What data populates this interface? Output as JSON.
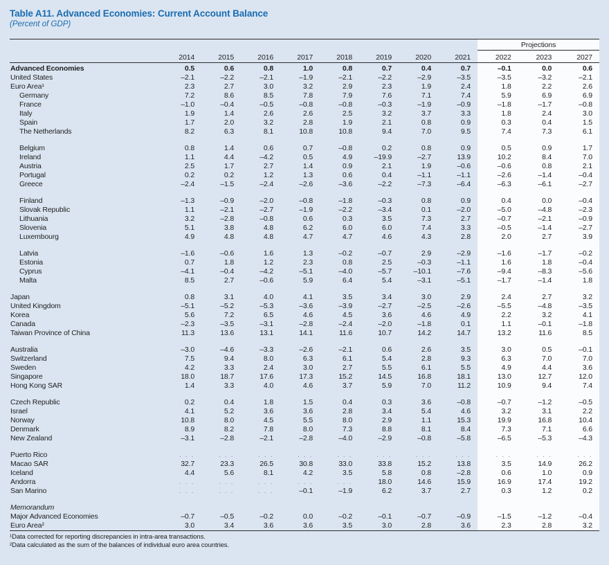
{
  "title": "Table A11. Advanced Economies: Current Account Balance",
  "subtitle": "(Percent of GDP)",
  "projections_label": "Projections",
  "columns": [
    "2014",
    "2015",
    "2016",
    "2017",
    "2018",
    "2019",
    "2020",
    "2021",
    "2022",
    "2023",
    "2027"
  ],
  "projection_start_index": 8,
  "dots_placeholder": ". . .",
  "colors": {
    "page_bg": "#dbe5f1",
    "panel_bg": "#fbfcfe",
    "accent_blue": "#1a6cb0",
    "text": "#1e1e1e",
    "rule": "#2a2a2a",
    "dots": "#8a97a5"
  },
  "rows": [
    {
      "label": "Advanced Economies",
      "indent": 0,
      "bold": true,
      "values": [
        "0.5",
        "0.6",
        "0.8",
        "1.0",
        "0.8",
        "0.7",
        "0.4",
        "0.7",
        "–0.1",
        "0.0",
        "0.6"
      ]
    },
    {
      "label": "United States",
      "indent": 0,
      "values": [
        "–2.1",
        "–2.2",
        "–2.1",
        "–1.9",
        "–2.1",
        "–2.2",
        "–2.9",
        "–3.5",
        "–3.5",
        "–3.2",
        "–2.1"
      ]
    },
    {
      "label": "Euro Area¹",
      "indent": 0,
      "values": [
        "2.3",
        "2.7",
        "3.0",
        "3.2",
        "2.9",
        "2.3",
        "1.9",
        "2.4",
        "1.8",
        "2.2",
        "2.6"
      ]
    },
    {
      "label": "Germany",
      "indent": 1,
      "values": [
        "7.2",
        "8.6",
        "8.5",
        "7.8",
        "7.9",
        "7.6",
        "7.1",
        "7.4",
        "5.9",
        "6.9",
        "6.9"
      ]
    },
    {
      "label": "France",
      "indent": 1,
      "values": [
        "–1.0",
        "–0.4",
        "–0.5",
        "–0.8",
        "–0.8",
        "–0.3",
        "–1.9",
        "–0.9",
        "–1.8",
        "–1.7",
        "–0.8"
      ]
    },
    {
      "label": "Italy",
      "indent": 1,
      "values": [
        "1.9",
        "1.4",
        "2.6",
        "2.6",
        "2.5",
        "3.2",
        "3.7",
        "3.3",
        "1.8",
        "2.4",
        "3.0"
      ]
    },
    {
      "label": "Spain",
      "indent": 1,
      "values": [
        "1.7",
        "2.0",
        "3.2",
        "2.8",
        "1.9",
        "2.1",
        "0.8",
        "0.9",
        "0.3",
        "0.4",
        "1.5"
      ]
    },
    {
      "label": "The Netherlands",
      "indent": 1,
      "values": [
        "8.2",
        "6.3",
        "8.1",
        "10.8",
        "10.8",
        "9.4",
        "7.0",
        "9.5",
        "7.4",
        "7.3",
        "6.1"
      ]
    },
    {
      "label": "Belgium",
      "indent": 1,
      "gap_before": true,
      "values": [
        "0.8",
        "1.4",
        "0.6",
        "0.7",
        "–0.8",
        "0.2",
        "0.8",
        "0.9",
        "0.5",
        "0.9",
        "1.7"
      ]
    },
    {
      "label": "Ireland",
      "indent": 1,
      "values": [
        "1.1",
        "4.4",
        "–4.2",
        "0.5",
        "4.9",
        "–19.9",
        "–2.7",
        "13.9",
        "10.2",
        "8.4",
        "7.0"
      ]
    },
    {
      "label": "Austria",
      "indent": 1,
      "values": [
        "2.5",
        "1.7",
        "2.7",
        "1.4",
        "0.9",
        "2.1",
        "1.9",
        "–0.6",
        "–0.6",
        "0.8",
        "2.1"
      ]
    },
    {
      "label": "Portugal",
      "indent": 1,
      "values": [
        "0.2",
        "0.2",
        "1.2",
        "1.3",
        "0.6",
        "0.4",
        "–1.1",
        "–1.1",
        "–2.6",
        "–1.4",
        "–0.4"
      ]
    },
    {
      "label": "Greece",
      "indent": 1,
      "values": [
        "–2.4",
        "–1.5",
        "–2.4",
        "–2.6",
        "–3.6",
        "–2.2",
        "–7.3",
        "–6.4",
        "–6.3",
        "–6.1",
        "–2.7"
      ]
    },
    {
      "label": "Finland",
      "indent": 1,
      "gap_before": true,
      "values": [
        "–1.3",
        "–0.9",
        "–2.0",
        "–0.8",
        "–1.8",
        "–0.3",
        "0.8",
        "0.9",
        "0.4",
        "0.0",
        "–0.4"
      ]
    },
    {
      "label": "Slovak Republic",
      "indent": 1,
      "values": [
        "1.1",
        "–2.1",
        "–2.7",
        "–1.9",
        "–2.2",
        "–3.4",
        "0.1",
        "–2.0",
        "–5.0",
        "–4.8",
        "–2.3"
      ]
    },
    {
      "label": "Lithuania",
      "indent": 1,
      "values": [
        "3.2",
        "–2.8",
        "–0.8",
        "0.6",
        "0.3",
        "3.5",
        "7.3",
        "2.7",
        "–0.7",
        "–2.1",
        "–0.9"
      ]
    },
    {
      "label": "Slovenia",
      "indent": 1,
      "values": [
        "5.1",
        "3.8",
        "4.8",
        "6.2",
        "6.0",
        "6.0",
        "7.4",
        "3.3",
        "–0.5",
        "–1.4",
        "–2.7"
      ]
    },
    {
      "label": "Luxembourg",
      "indent": 1,
      "values": [
        "4.9",
        "4.8",
        "4.8",
        "4.7",
        "4.7",
        "4.6",
        "4.3",
        "2.8",
        "2.0",
        "2.7",
        "3.9"
      ]
    },
    {
      "label": "Latvia",
      "indent": 1,
      "gap_before": true,
      "values": [
        "–1.6",
        "–0.6",
        "1.6",
        "1.3",
        "–0.2",
        "–0.7",
        "2.9",
        "–2.9",
        "–1.6",
        "–1.7",
        "–0.2"
      ]
    },
    {
      "label": "Estonia",
      "indent": 1,
      "values": [
        "0.7",
        "1.8",
        "1.2",
        "2.3",
        "0.8",
        "2.5",
        "–0.3",
        "–1.1",
        "1.6",
        "1.8",
        "–0.4"
      ]
    },
    {
      "label": "Cyprus",
      "indent": 1,
      "values": [
        "–4.1",
        "–0.4",
        "–4.2",
        "–5.1",
        "–4.0",
        "–5.7",
        "–10.1",
        "–7.6",
        "–9.4",
        "–8.3",
        "–5.6"
      ]
    },
    {
      "label": "Malta",
      "indent": 1,
      "values": [
        "8.5",
        "2.7",
        "–0.6",
        "5.9",
        "6.4",
        "5.4",
        "–3.1",
        "–5.1",
        "–1.7",
        "–1.4",
        "1.8"
      ]
    },
    {
      "label": "Japan",
      "indent": 0,
      "gap_before": true,
      "values": [
        "0.8",
        "3.1",
        "4.0",
        "4.1",
        "3.5",
        "3.4",
        "3.0",
        "2.9",
        "2.4",
        "2.7",
        "3.2"
      ]
    },
    {
      "label": "United Kingdom",
      "indent": 0,
      "values": [
        "–5.1",
        "–5.2",
        "–5.3",
        "–3.6",
        "–3.9",
        "–2.7",
        "–2.5",
        "–2.6",
        "–5.5",
        "–4.8",
        "–3.5"
      ]
    },
    {
      "label": "Korea",
      "indent": 0,
      "values": [
        "5.6",
        "7.2",
        "6.5",
        "4.6",
        "4.5",
        "3.6",
        "4.6",
        "4.9",
        "2.2",
        "3.2",
        "4.1"
      ]
    },
    {
      "label": "Canada",
      "indent": 0,
      "values": [
        "–2.3",
        "–3.5",
        "–3.1",
        "–2.8",
        "–2.4",
        "–2.0",
        "–1.8",
        "0.1",
        "1.1",
        "–0.1",
        "–1.8"
      ]
    },
    {
      "label": "Taiwan Province of China",
      "indent": 0,
      "values": [
        "11.3",
        "13.6",
        "13.1",
        "14.1",
        "11.6",
        "10.7",
        "14.2",
        "14.7",
        "13.2",
        "11.6",
        "8.5"
      ]
    },
    {
      "label": "Australia",
      "indent": 0,
      "gap_before": true,
      "values": [
        "–3.0",
        "–4.6",
        "–3.3",
        "–2.6",
        "–2.1",
        "0.6",
        "2.6",
        "3.5",
        "3.0",
        "0.5",
        "–0.1"
      ]
    },
    {
      "label": "Switzerland",
      "indent": 0,
      "values": [
        "7.5",
        "9.4",
        "8.0",
        "6.3",
        "6.1",
        "5.4",
        "2.8",
        "9.3",
        "6.3",
        "7.0",
        "7.0"
      ]
    },
    {
      "label": "Sweden",
      "indent": 0,
      "values": [
        "4.2",
        "3.3",
        "2.4",
        "3.0",
        "2.7",
        "5.5",
        "6.1",
        "5.5",
        "4.9",
        "4.4",
        "3.6"
      ]
    },
    {
      "label": "Singapore",
      "indent": 0,
      "values": [
        "18.0",
        "18.7",
        "17.6",
        "17.3",
        "15.2",
        "14.5",
        "16.8",
        "18.1",
        "13.0",
        "12.7",
        "12.0"
      ]
    },
    {
      "label": "Hong Kong SAR",
      "indent": 0,
      "values": [
        "1.4",
        "3.3",
        "4.0",
        "4.6",
        "3.7",
        "5.9",
        "7.0",
        "11.2",
        "10.9",
        "9.4",
        "7.4"
      ]
    },
    {
      "label": "Czech Republic",
      "indent": 0,
      "gap_before": true,
      "values": [
        "0.2",
        "0.4",
        "1.8",
        "1.5",
        "0.4",
        "0.3",
        "3.6",
        "–0.8",
        "–0.7",
        "–1.2",
        "–0.5"
      ]
    },
    {
      "label": "Israel",
      "indent": 0,
      "values": [
        "4.1",
        "5.2",
        "3.6",
        "3.6",
        "2.8",
        "3.4",
        "5.4",
        "4.6",
        "3.2",
        "3.1",
        "2.2"
      ]
    },
    {
      "label": "Norway",
      "indent": 0,
      "values": [
        "10.8",
        "8.0",
        "4.5",
        "5.5",
        "8.0",
        "2.9",
        "1.1",
        "15.3",
        "19.9",
        "16.8",
        "10.4"
      ]
    },
    {
      "label": "Denmark",
      "indent": 0,
      "values": [
        "8.9",
        "8.2",
        "7.8",
        "8.0",
        "7.3",
        "8.8",
        "8.1",
        "8.4",
        "7.3",
        "7.1",
        "6.6"
      ]
    },
    {
      "label": "New Zealand",
      "indent": 0,
      "values": [
        "–3.1",
        "–2.8",
        "–2.1",
        "–2.8",
        "–4.0",
        "–2.9",
        "–0.8",
        "–5.8",
        "–6.5",
        "–5.3",
        "–4.3"
      ]
    },
    {
      "label": "Puerto Rico",
      "indent": 0,
      "gap_before": true,
      "values": [
        ". . .",
        ". . .",
        ". . .",
        ". . .",
        ". . .",
        ". . .",
        ". . .",
        ". . .",
        ". . .",
        ". . .",
        ". . ."
      ]
    },
    {
      "label": "Macao SAR",
      "indent": 0,
      "values": [
        "32.7",
        "23.3",
        "26.5",
        "30.8",
        "33.0",
        "33.8",
        "15.2",
        "13.8",
        "3.5",
        "14.9",
        "26.2"
      ]
    },
    {
      "label": "Iceland",
      "indent": 0,
      "values": [
        "4.4",
        "5.6",
        "8.1",
        "4.2",
        "3.5",
        "5.8",
        "0.8",
        "–2.8",
        "0.6",
        "1.0",
        "0.9"
      ]
    },
    {
      "label": "Andorra",
      "indent": 0,
      "values": [
        ". . .",
        ". . .",
        ". . .",
        ". . .",
        ". . .",
        "18.0",
        "14.6",
        "15.9",
        "16.9",
        "17.4",
        "19.2"
      ]
    },
    {
      "label": "San Marino",
      "indent": 0,
      "values": [
        ". . .",
        ". . .",
        ". . .",
        "–0.1",
        "–1.9",
        "6.2",
        "3.7",
        "2.7",
        "0.3",
        "1.2",
        "0.2"
      ]
    },
    {
      "label": "Memorandum",
      "indent": 0,
      "italic": true,
      "gap_before": true,
      "values": [
        "",
        "",
        "",
        "",
        "",
        "",
        "",
        "",
        "",
        "",
        ""
      ]
    },
    {
      "label": "Major Advanced Economies",
      "indent": 0,
      "values": [
        "–0.7",
        "–0.5",
        "–0.2",
        "0.0",
        "–0.2",
        "–0.1",
        "–0.7",
        "–0.9",
        "–1.5",
        "–1.2",
        "–0.4"
      ]
    },
    {
      "label": "Euro Area²",
      "indent": 0,
      "values": [
        "3.0",
        "3.4",
        "3.6",
        "3.6",
        "3.5",
        "3.0",
        "2.8",
        "3.6",
        "2.3",
        "2.8",
        "3.2"
      ]
    }
  ],
  "footnotes": [
    "¹Data corrected for reporting discrepancies in intra-area transactions.",
    "²Data calculated as the sum of the balances of individual euro area countries."
  ]
}
